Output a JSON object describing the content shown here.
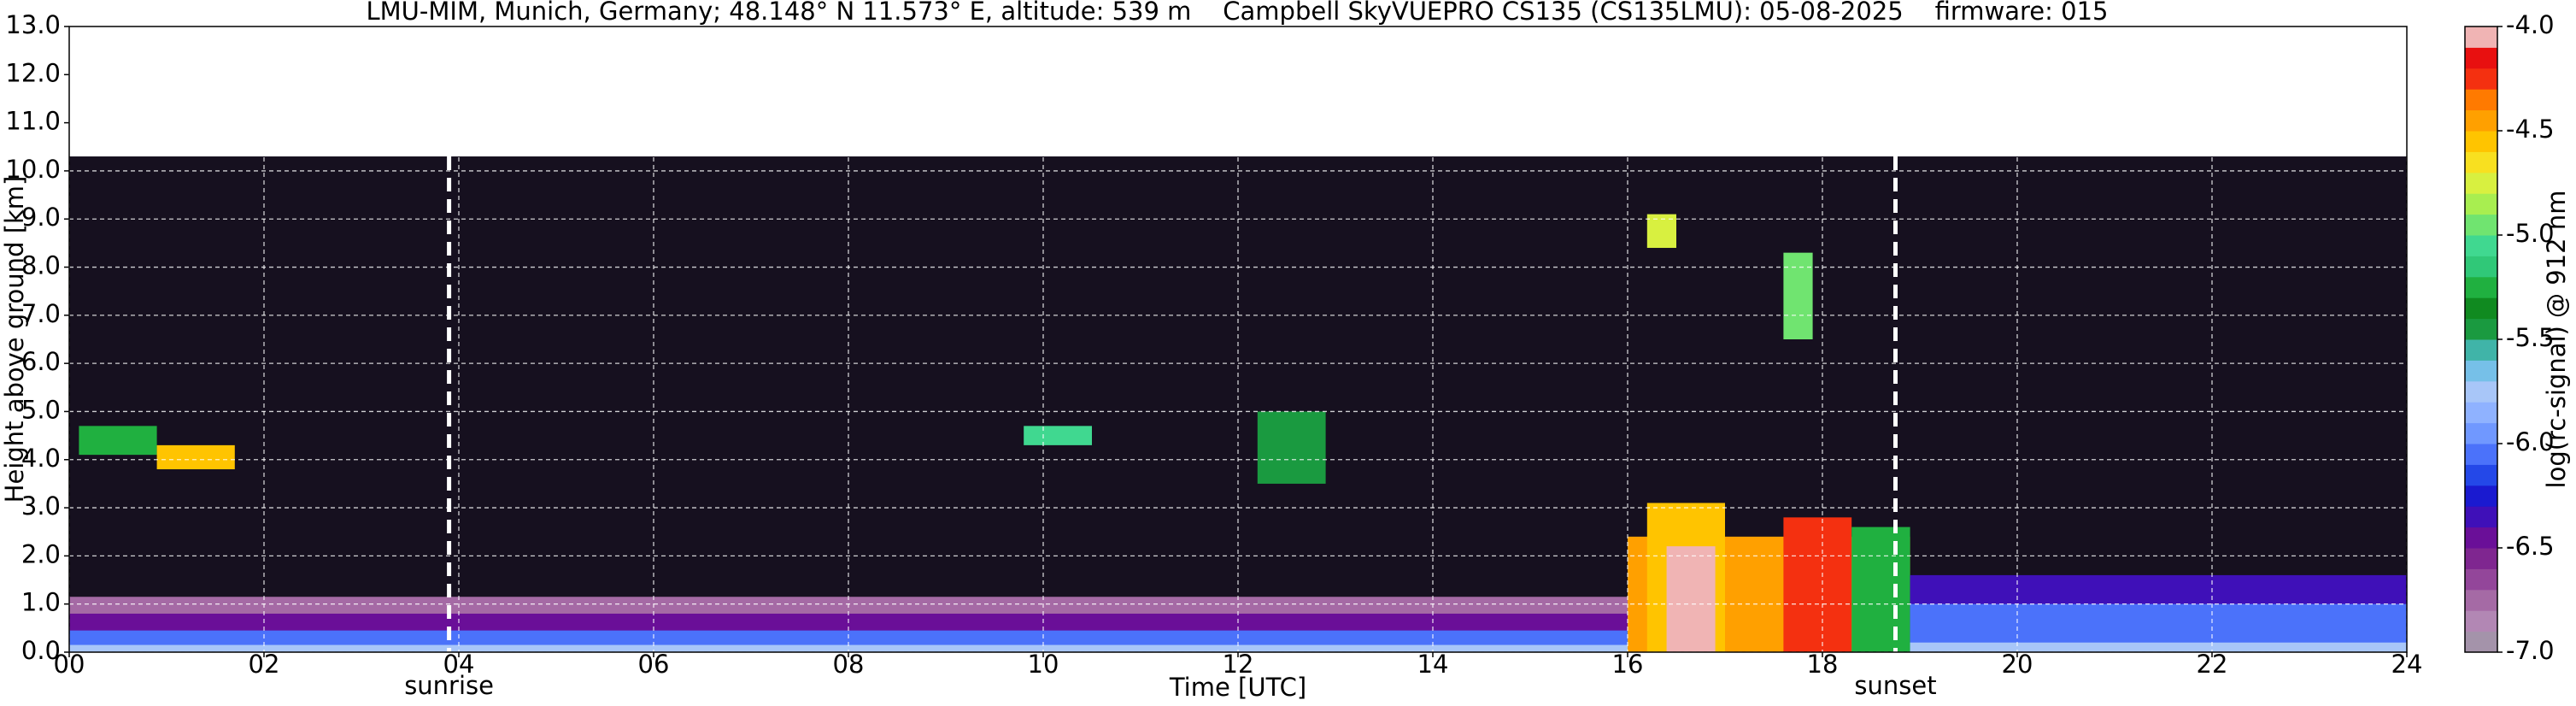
{
  "chart_data": {
    "type": "heatmap",
    "title": "LMU-MIM, Munich, Germany; 48.148° N 11.573° E, altitude: 539 m    Campbell SkyVUEPRO CS135 (CS135LMU): 05-08-2025    firmware: 015",
    "x_label": "Time [UTC]",
    "y_label": "Height above ground [km]",
    "xlim": [
      0,
      24
    ],
    "xticks": [
      {
        "value": 0,
        "label": "00"
      },
      {
        "value": 2,
        "label": "02"
      },
      {
        "value": 4,
        "label": "04"
      },
      {
        "value": 6,
        "label": "06"
      },
      {
        "value": 8,
        "label": "08"
      },
      {
        "value": 10,
        "label": "10"
      },
      {
        "value": 12,
        "label": "12"
      },
      {
        "value": 14,
        "label": "14"
      },
      {
        "value": 16,
        "label": "16"
      },
      {
        "value": 18,
        "label": "18"
      },
      {
        "value": 20,
        "label": "20"
      },
      {
        "value": 22,
        "label": "22"
      },
      {
        "value": 24,
        "label": "24"
      }
    ],
    "ylim": [
      0,
      13
    ],
    "yticks": [
      {
        "value": 0,
        "label": "0.0"
      },
      {
        "value": 1,
        "label": "1.0"
      },
      {
        "value": 2,
        "label": "2.0"
      },
      {
        "value": 3,
        "label": "3.0"
      },
      {
        "value": 4,
        "label": "4.0"
      },
      {
        "value": 5,
        "label": "5.0"
      },
      {
        "value": 6,
        "label": "6.0"
      },
      {
        "value": 7,
        "label": "7.0"
      },
      {
        "value": 8,
        "label": "8.0"
      },
      {
        "value": 9,
        "label": "9.0"
      },
      {
        "value": 10,
        "label": "10.0"
      },
      {
        "value": 11,
        "label": "11.0"
      },
      {
        "value": 12,
        "label": "12.0"
      },
      {
        "value": 13,
        "label": "13.0"
      }
    ],
    "grid": true,
    "colorbar": {
      "label": "log(rc-signal) @ 912 nm",
      "clim": [
        -7,
        -4
      ],
      "ticks": [
        {
          "value": -4,
          "label": "-4.0"
        },
        {
          "value": -4.5,
          "label": "-4.5"
        },
        {
          "value": -5,
          "label": "-5.0"
        },
        {
          "value": -5.5,
          "label": "-5.5"
        },
        {
          "value": -6,
          "label": "-6.0"
        },
        {
          "value": -6.5,
          "label": "-6.5"
        },
        {
          "value": -7,
          "label": "-7.0"
        }
      ],
      "colors": [
        "#a493aa",
        "#b287b4",
        "#a56aa5",
        "#93469a",
        "#7f2690",
        "#6a0f98",
        "#3f10b8",
        "#1a1ad0",
        "#2448e8",
        "#4b72fa",
        "#7098ff",
        "#8fb2ff",
        "#a8c6f8",
        "#76c0e8",
        "#40b4a8",
        "#1a9a40",
        "#108a20",
        "#20b040",
        "#30c878",
        "#40d890",
        "#70e470",
        "#a8ee50",
        "#d8f040",
        "#f8e020",
        "#ffc400",
        "#ffa000",
        "#ff7a00",
        "#f43010",
        "#e81010",
        "#f0b4b4"
      ],
      "top_color": "#ffffff",
      "under_color": "#16101f"
    },
    "layers": [
      {
        "x0": 0,
        "x1": 24,
        "y0": 0,
        "y1": 10.3,
        "value": -7.5
      },
      {
        "x0": 0,
        "x1": 16,
        "y0": 0,
        "y1": 1.15,
        "value": -6.75
      },
      {
        "x0": 0,
        "x1": 16,
        "y0": 0,
        "y1": 0.8,
        "value": -6.45
      },
      {
        "x0": 0,
        "x1": 16,
        "y0": 0,
        "y1": 0.45,
        "value": -6.1
      },
      {
        "x0": 0,
        "x1": 16,
        "y0": 0,
        "y1": 0.15,
        "value": -5.75
      },
      {
        "x0": 0.1,
        "x1": 0.9,
        "y0": 4.1,
        "y1": 4.7,
        "value": -5.3
      },
      {
        "x0": 0.9,
        "x1": 1.7,
        "y0": 3.8,
        "y1": 4.3,
        "value": -4.6
      },
      {
        "x0": 9.8,
        "x1": 10.5,
        "y0": 4.3,
        "y1": 4.7,
        "value": -5.1
      },
      {
        "x0": 12.2,
        "x1": 12.9,
        "y0": 3.5,
        "y1": 5.0,
        "value": -5.4
      },
      {
        "x0": 16,
        "x1": 18.9,
        "y0": 0,
        "y1": 2.4,
        "value": -4.45
      },
      {
        "x0": 16.2,
        "x1": 17.0,
        "y0": 0,
        "y1": 3.1,
        "value": -4.55
      },
      {
        "x0": 16.4,
        "x1": 16.9,
        "y0": 0,
        "y1": 2.2,
        "value": -4.05
      },
      {
        "x0": 17.6,
        "x1": 18.3,
        "y0": 0,
        "y1": 2.8,
        "value": -4.2
      },
      {
        "x0": 18.3,
        "x1": 18.9,
        "y0": 0,
        "y1": 2.6,
        "value": -5.2
      },
      {
        "x0": 16.2,
        "x1": 16.5,
        "y0": 8.4,
        "y1": 9.1,
        "value": -4.8
      },
      {
        "x0": 17.6,
        "x1": 17.9,
        "y0": 6.5,
        "y1": 8.3,
        "value": -5.0
      },
      {
        "x0": 18.9,
        "x1": 24,
        "y0": 0,
        "y1": 1.6,
        "value": -6.35
      },
      {
        "x0": 18.9,
        "x1": 24,
        "y0": 0,
        "y1": 1.0,
        "value": -6.05
      },
      {
        "x0": 18.9,
        "x1": 24,
        "y0": 0,
        "y1": 0.2,
        "value": -5.75
      }
    ],
    "annotations": [
      {
        "label": "sunrise",
        "x": 3.9
      },
      {
        "label": "sunset",
        "x": 18.75
      }
    ]
  }
}
